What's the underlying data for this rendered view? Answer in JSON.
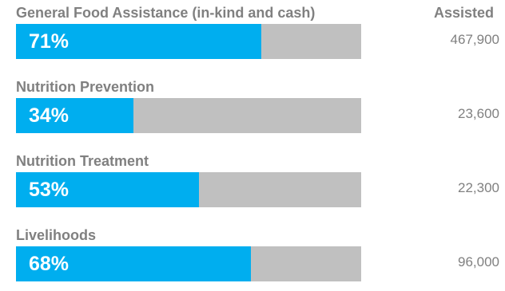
{
  "chart_data": {
    "type": "bar",
    "orientation": "horizontal",
    "value_header": "Assisted",
    "categories": [
      "General Food Assistance (in-kind and cash)",
      "Nutrition Prevention",
      "Nutrition Treatment",
      "Livelihoods"
    ],
    "percent_labels": [
      "71%",
      "34%",
      "53%",
      "68%"
    ],
    "percent_values": [
      71,
      34,
      53,
      68
    ],
    "assisted": [
      "467,900",
      "23,600",
      "22,300",
      "96,000"
    ],
    "assisted_values": [
      467900,
      23600,
      22300,
      96000
    ],
    "xlim": [
      0,
      100
    ],
    "colors": {
      "fill": "#00aeef",
      "track": "#c0c0c0",
      "label": "#808080",
      "percent_text": "#ffffff"
    },
    "grid": false,
    "legend": "none"
  }
}
